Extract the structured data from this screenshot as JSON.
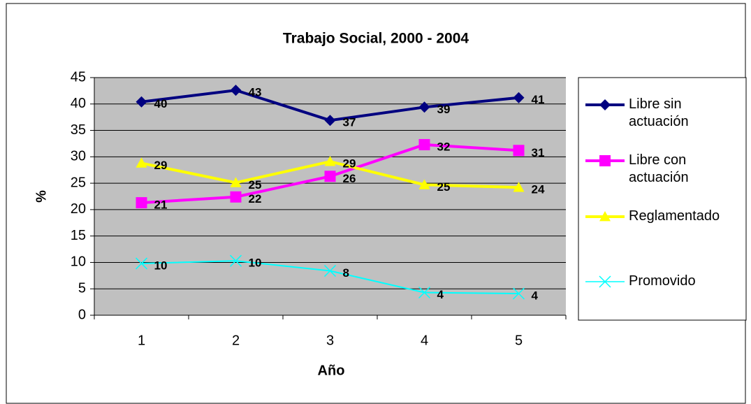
{
  "chart_data": {
    "type": "line",
    "title": "Trabajo Social, 2000 - 2004",
    "xlabel": "Año",
    "ylabel": "%",
    "categories": [
      "1",
      "2",
      "3",
      "4",
      "5"
    ],
    "ylim": [
      0,
      45
    ],
    "yticks": [
      0,
      5,
      10,
      15,
      20,
      25,
      30,
      35,
      40,
      45
    ],
    "grid": true,
    "series": [
      {
        "name": "Libre sin actuación",
        "color": "#000080",
        "marker": "diamond",
        "values": [
          40.4,
          42.6,
          36.9,
          39.4,
          41.2
        ],
        "value_labels": [
          "40",
          "43",
          "37",
          "39",
          "41"
        ]
      },
      {
        "name": "Libre con actuación",
        "color": "#ff00ff",
        "marker": "square",
        "values": [
          21.3,
          22.4,
          26.3,
          32.3,
          31.2
        ],
        "value_labels": [
          "21",
          "22",
          "26",
          "32",
          "31"
        ]
      },
      {
        "name": "Reglamentado",
        "color": "#ffff00",
        "marker": "triangle",
        "values": [
          28.8,
          25.1,
          29.1,
          24.7,
          24.2
        ],
        "value_labels": [
          "29",
          "25",
          "29",
          "25",
          "24"
        ]
      },
      {
        "name": "Promovido",
        "color": "#00ffff",
        "marker": "x",
        "values": [
          9.8,
          10.3,
          8.4,
          4.3,
          4.1
        ],
        "value_labels": [
          "10",
          "10",
          "8",
          "4",
          "4"
        ]
      }
    ]
  }
}
